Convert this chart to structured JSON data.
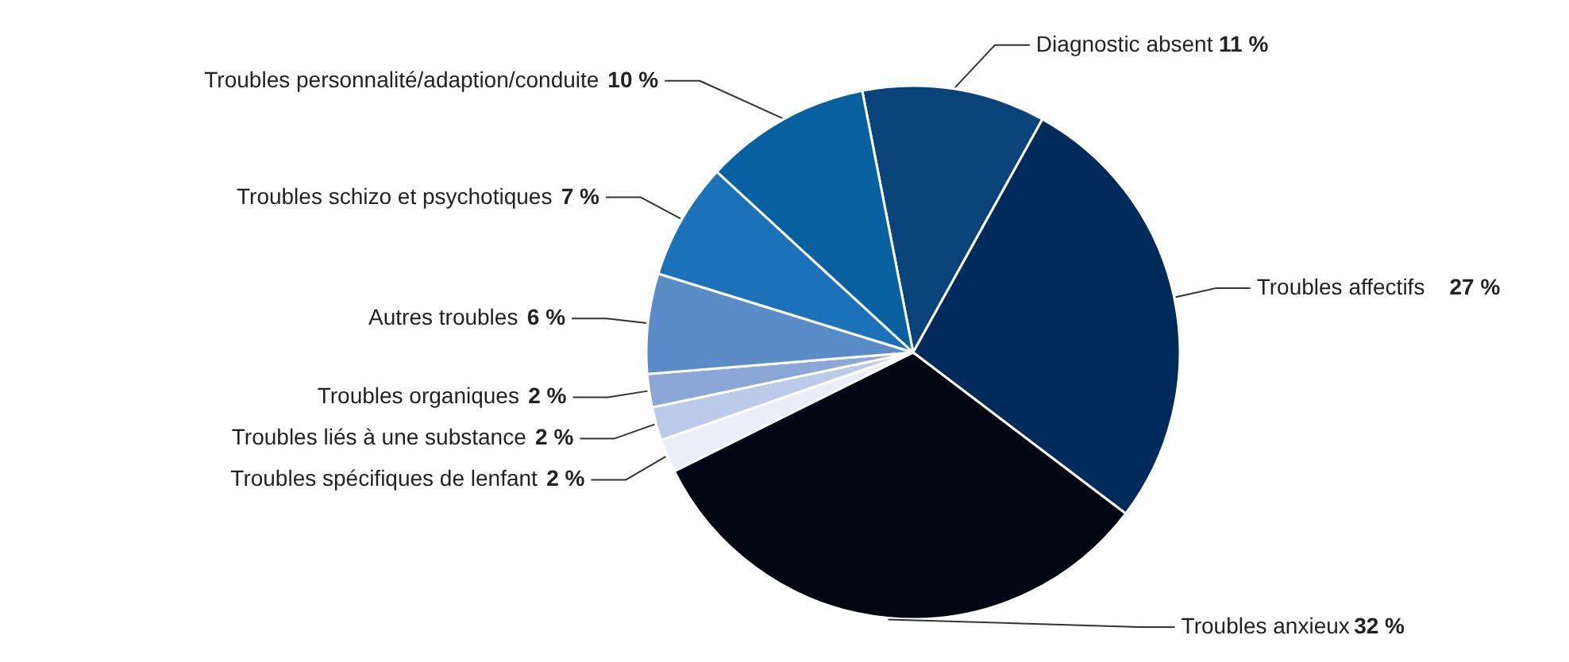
{
  "chart_data": {
    "type": "pie",
    "categories": [
      "Diagnostic absent",
      "Troubles affectifs",
      "Troubles anxieux",
      "Troubles spécifiques de lenfant",
      "Troubles liés à une substance",
      "Troubles organiques",
      "Autres troubles",
      "Troubles schizo et psychotiques",
      "Troubles personnalité/adaption/conduite"
    ],
    "values": [
      11,
      27,
      32,
      2,
      2,
      2,
      6,
      7,
      10
    ],
    "colors": [
      "#0a4379",
      "#002b5a",
      "#000612",
      "#e9eef8",
      "#bccbea",
      "#8aa7d8",
      "#5a8cc8",
      "#1b72b8",
      "#07609f"
    ],
    "value_labels": [
      "11 %",
      "27 %",
      "32 %",
      "2 %",
      "2 %",
      "2 %",
      "6 %",
      "7 %",
      "10 %"
    ]
  }
}
